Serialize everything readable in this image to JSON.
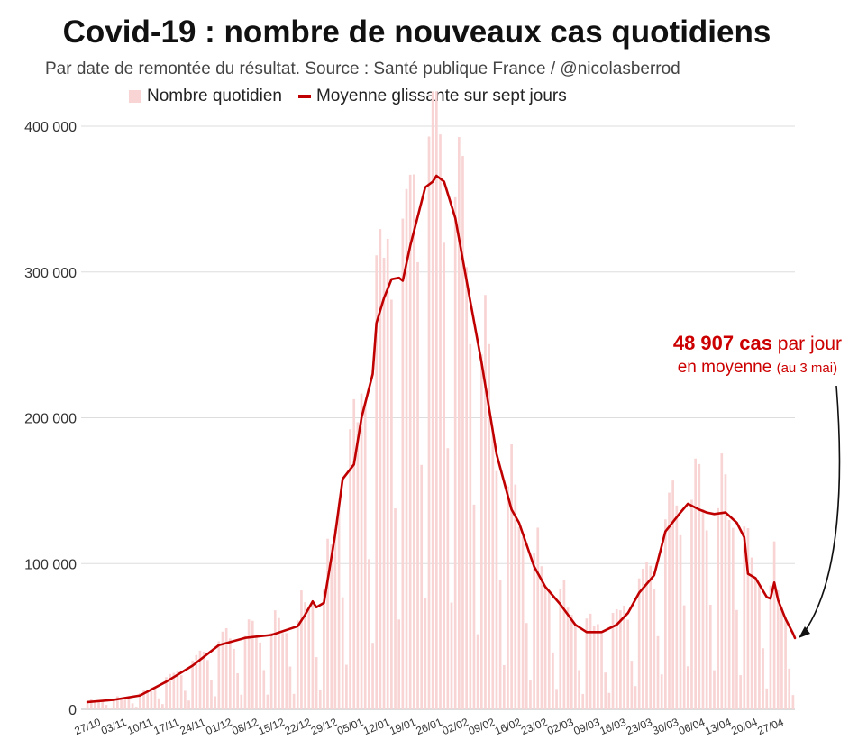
{
  "title": "Covid-19 : nombre de nouveaux cas quotidiens",
  "subtitle": "Par date de remontée du résultat. Source : Santé publique France / @nicolasberrod",
  "legend": {
    "bars_label": "Nombre quotidien",
    "line_label": "Moyenne glissante sur sept jours"
  },
  "annotation": {
    "value": "48 907 cas",
    "rest1": " par jour",
    "line2": "en moyenne",
    "note": "(au 3 mai)"
  },
  "colors": {
    "bar": "#f8d4d4",
    "line": "#c00000",
    "accent": "#cc0000",
    "grid": "#dddddd"
  },
  "chart_data": {
    "type": "bar+line",
    "title": "Covid-19 : nombre de nouveaux cas quotidiens",
    "xlabel": "",
    "ylabel": "",
    "ylim": [
      0,
      400000
    ],
    "y_ticks": [
      0,
      100000,
      200000,
      300000,
      400000
    ],
    "y_tick_labels": [
      "0",
      "100 000",
      "200 000",
      "300 000",
      "400 000"
    ],
    "x_tick_labels": [
      "27/10",
      "03/11",
      "10/11",
      "17/11",
      "24/11",
      "01/12",
      "08/12",
      "15/12",
      "22/12",
      "29/12",
      "05/01",
      "12/01",
      "19/01",
      "26/01",
      "02/02",
      "09/02",
      "16/02",
      "23/02",
      "02/03",
      "09/03",
      "16/03",
      "23/03",
      "30/03",
      "06/04",
      "13/04",
      "20/04",
      "27/04"
    ],
    "n_days": 189,
    "first_day": "27/10",
    "last_day": "03/05",
    "series": [
      {
        "name": "Nombre quotidien",
        "kind": "bar",
        "weekly_pattern": [
          1.1,
          1.25,
          1.15,
          1.05,
          0.95,
          0.5,
          0.2
        ]
      },
      {
        "name": "Moyenne glissante sur sept jours",
        "kind": "line",
        "keypoints": [
          [
            0,
            5000
          ],
          [
            7,
            6500
          ],
          [
            14,
            9500
          ],
          [
            21,
            19000
          ],
          [
            28,
            30000
          ],
          [
            35,
            44000
          ],
          [
            42,
            49000
          ],
          [
            49,
            51000
          ],
          [
            56,
            57000
          ],
          [
            58,
            65000
          ],
          [
            60,
            74000
          ],
          [
            61,
            70000
          ],
          [
            63,
            73000
          ],
          [
            66,
            120000
          ],
          [
            68,
            158000
          ],
          [
            71,
            168000
          ],
          [
            73,
            200000
          ],
          [
            76,
            230000
          ],
          [
            77,
            265000
          ],
          [
            79,
            282000
          ],
          [
            81,
            295000
          ],
          [
            83,
            296000
          ],
          [
            84,
            294000
          ],
          [
            86,
            318000
          ],
          [
            88,
            338000
          ],
          [
            90,
            358000
          ],
          [
            92,
            362000
          ],
          [
            93,
            366000
          ],
          [
            95,
            362000
          ],
          [
            98,
            337000
          ],
          [
            102,
            280000
          ],
          [
            105,
            238000
          ],
          [
            109,
            175000
          ],
          [
            113,
            137000
          ],
          [
            115,
            128000
          ],
          [
            119,
            98000
          ],
          [
            122,
            84000
          ],
          [
            126,
            72000
          ],
          [
            130,
            58000
          ],
          [
            133,
            53000
          ],
          [
            137,
            53000
          ],
          [
            141,
            58000
          ],
          [
            144,
            66000
          ],
          [
            147,
            80000
          ],
          [
            151,
            92000
          ],
          [
            154,
            122000
          ],
          [
            158,
            135000
          ],
          [
            160,
            141000
          ],
          [
            163,
            137000
          ],
          [
            165,
            135000
          ],
          [
            167,
            134000
          ],
          [
            170,
            135000
          ],
          [
            173,
            128000
          ],
          [
            175,
            118000
          ],
          [
            176,
            93000
          ],
          [
            178,
            90000
          ],
          [
            181,
            77000
          ],
          [
            182,
            76000
          ],
          [
            183,
            87000
          ],
          [
            184,
            75000
          ],
          [
            186,
            62000
          ],
          [
            188,
            52000
          ],
          [
            189,
            48907
          ]
        ]
      }
    ],
    "annotation": {
      "text": "48 907 cas par jour en moyenne (au 3 mai)",
      "value": 48907,
      "date": "03/05"
    }
  }
}
